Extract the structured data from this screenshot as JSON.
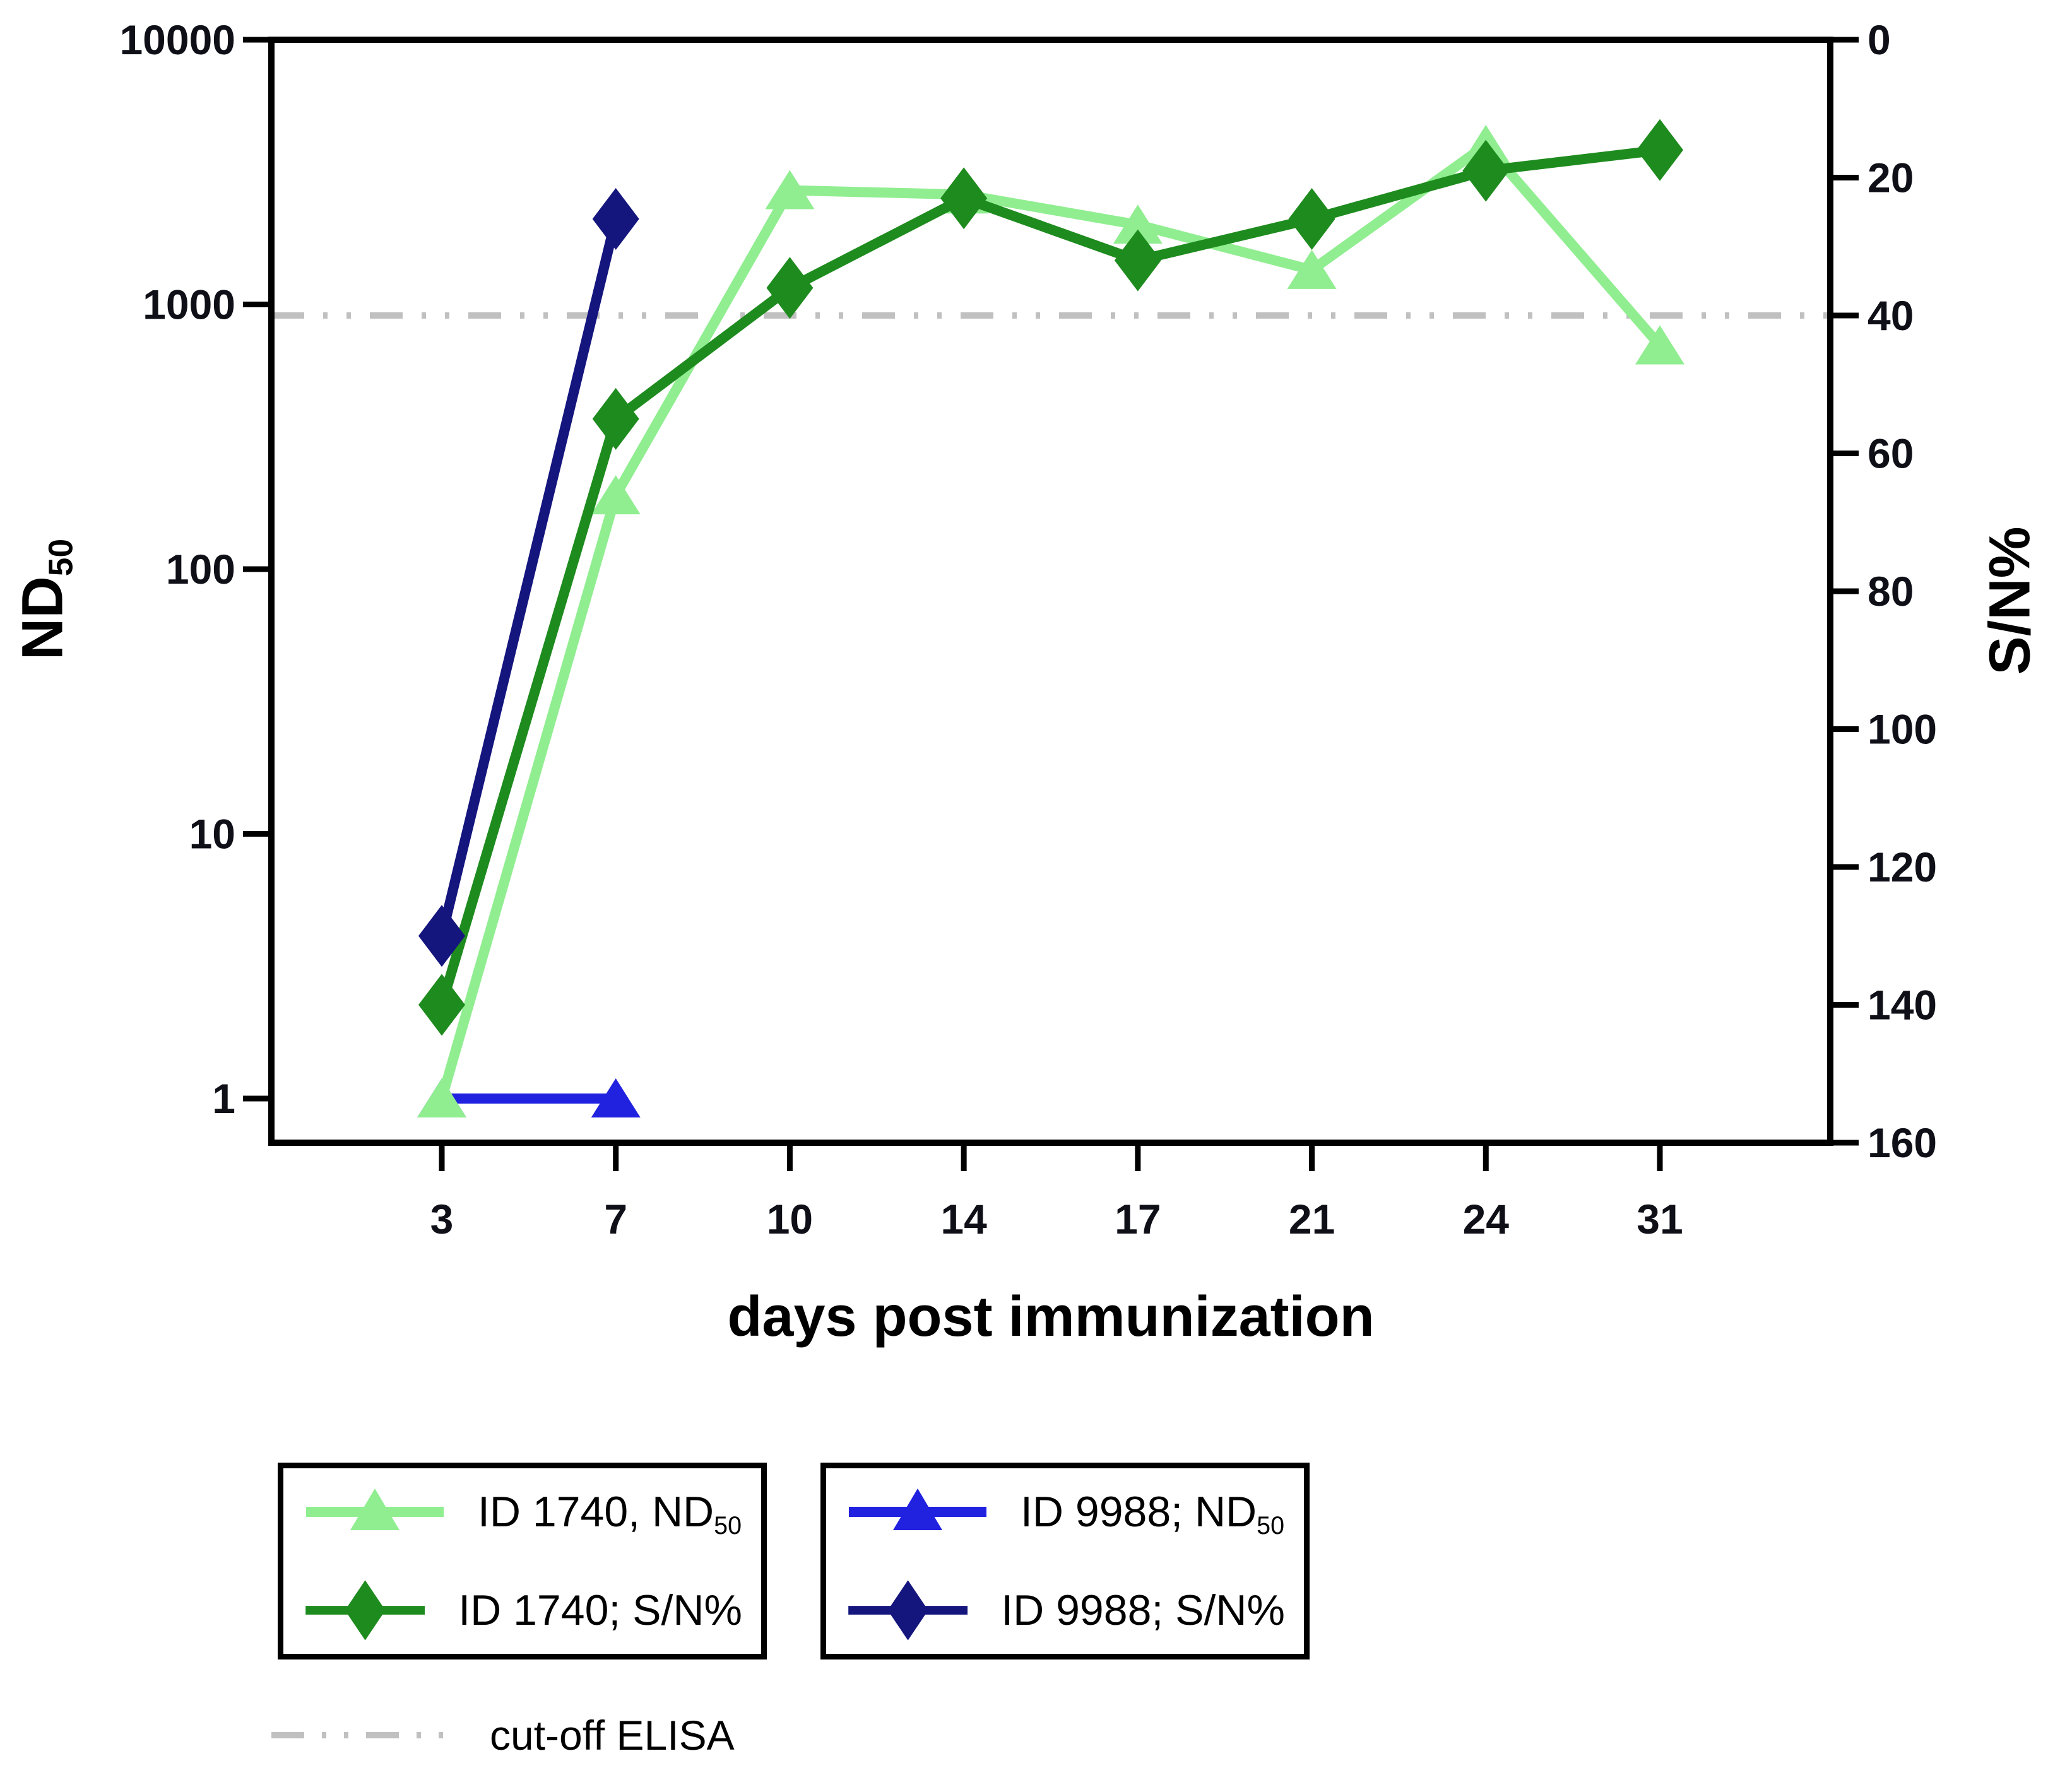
{
  "axes": {
    "left_title": {
      "text": "ND",
      "sub": "50"
    },
    "right_title": {
      "text": "S/N%"
    },
    "x_title": {
      "text": "days post immunization"
    }
  },
  "chart_data": {
    "type": "line",
    "title": "",
    "xlabel": "days post immunization",
    "ylabel_left": "ND50",
    "ylabel_right": "S/N%",
    "x_categories": [
      3,
      7,
      10,
      14,
      17,
      21,
      24,
      31
    ],
    "x_tick_labels": [
      "3",
      "7",
      "10",
      "14",
      "17",
      "21",
      "24",
      "31"
    ],
    "y_left": {
      "scale": "log",
      "top_value": 10000,
      "bottom_value": 0.68,
      "tick_values": [
        10000,
        1000,
        100,
        10,
        1
      ],
      "tick_labels": [
        "10000",
        "1000",
        "100",
        "10",
        "1"
      ]
    },
    "y_right": {
      "scale": "linear",
      "inverted_down": true,
      "min": 0,
      "max": 160,
      "tick_values": [
        0,
        20,
        40,
        60,
        80,
        100,
        120,
        140,
        160
      ],
      "tick_labels": [
        "0",
        "20",
        "40",
        "60",
        "80",
        "100",
        "120",
        "140",
        "160"
      ]
    },
    "series": [
      {
        "name": "ID 1740, ND50",
        "axis": "left",
        "marker": "triangle",
        "color": "#90EE90",
        "x": [
          3,
          7,
          10,
          14,
          17,
          21,
          24,
          31
        ],
        "values": [
          1,
          190,
          2700,
          2600,
          2000,
          1350,
          4000,
          700
        ]
      },
      {
        "name": "ID 1740; S/N%",
        "axis": "right",
        "marker": "diamond",
        "color": "#1E8B1E",
        "x": [
          3,
          7,
          10,
          14,
          17,
          21,
          24,
          31
        ],
        "values": [
          140,
          55,
          36,
          23,
          32,
          26,
          19,
          16
        ]
      },
      {
        "name": "ID 9988; ND50",
        "axis": "left",
        "marker": "triangle",
        "color": "#2121E0",
        "x": [
          3,
          7
        ],
        "values": [
          1,
          1
        ]
      },
      {
        "name": "ID 9988; S/N%",
        "axis": "right",
        "marker": "diamond",
        "color": "#15157E",
        "x": [
          3,
          7
        ],
        "values": [
          130,
          26
        ]
      }
    ],
    "cutoff_line": {
      "label": "cut-off ELISA",
      "value_on_right_axis": 40,
      "approx_value_on_left_axis": 870,
      "color": "#C0C0C0"
    },
    "grid": "off",
    "legend_position": "below"
  },
  "legend": {
    "box1": {
      "items": [
        {
          "text": "ID 1740, ND",
          "sub": "50"
        },
        {
          "text": "ID 1740; S/N%"
        }
      ]
    },
    "box2": {
      "items": [
        {
          "text": "ID 9988; ND",
          "sub": "50"
        },
        {
          "text": "ID 9988; S/N%"
        }
      ]
    },
    "cutoff": {
      "text": "cut-off ELISA"
    }
  }
}
